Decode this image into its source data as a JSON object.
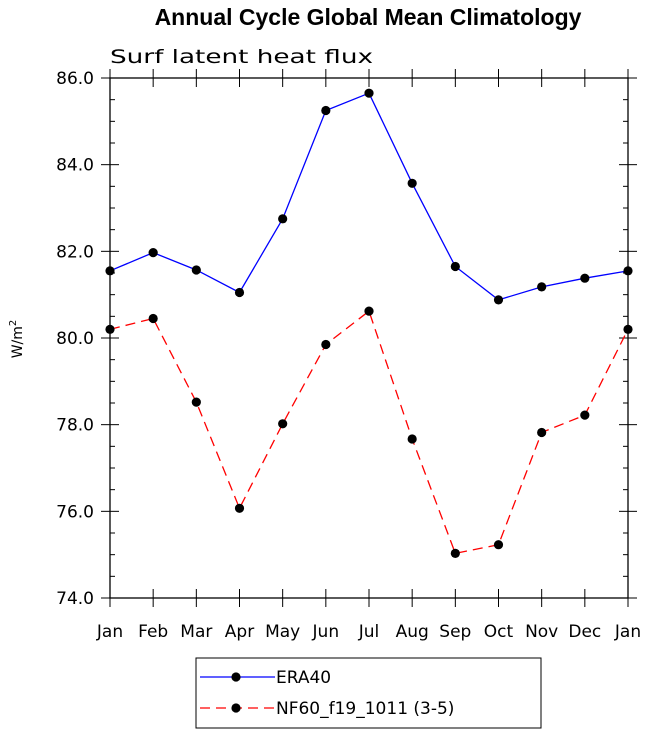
{
  "chart_data": {
    "type": "line",
    "title": "Annual Cycle Global Mean Climatology",
    "subtitle": "Surf latent heat flux",
    "ylabel": "W/m",
    "ylabel_sup": "2",
    "xlabel": "",
    "categories": [
      "Jan",
      "Feb",
      "Mar",
      "Apr",
      "May",
      "Jun",
      "Jul",
      "Aug",
      "Sep",
      "Oct",
      "Nov",
      "Dec",
      "Jan"
    ],
    "ylim": [
      74.0,
      86.0
    ],
    "yticks": [
      "74.0",
      "76.0",
      "78.0",
      "80.0",
      "82.0",
      "84.0",
      "86.0"
    ],
    "grid": false,
    "legend_position": "bottom",
    "series": [
      {
        "name": "ERA40",
        "color": "#0000ff",
        "dash": "solid",
        "values": [
          81.55,
          81.97,
          81.57,
          81.05,
          82.75,
          85.25,
          85.65,
          83.57,
          81.65,
          80.88,
          81.18,
          81.38,
          81.55
        ]
      },
      {
        "name": "NF60_f19_1011 (3-5)",
        "color": "#ff0000",
        "dash": "dashed",
        "values": [
          80.2,
          80.45,
          78.52,
          76.07,
          78.02,
          79.85,
          80.62,
          77.67,
          75.03,
          75.23,
          77.82,
          78.22,
          80.2
        ]
      }
    ]
  }
}
